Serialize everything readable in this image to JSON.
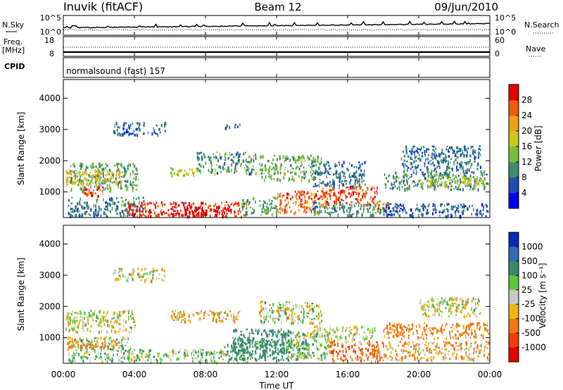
{
  "header": {
    "station": "Inuvik (fitACF)",
    "beam": "Beam 12",
    "date": "09/Jun/2010"
  },
  "top_panels": {
    "nsky_label": "N.Sky",
    "nsky_ticks": [
      "10^5",
      "10^0"
    ],
    "nsearch_label": "N.Search",
    "freq_label_line1": "Freq.",
    "freq_label_line2": "[MHz]",
    "freq_ticks": [
      "18",
      "8"
    ],
    "nave_ticks": [
      "60",
      "0"
    ],
    "nave_label": "Nave",
    "cpid_label": "CPID",
    "cpid_value": "normalsound (fast) 157"
  },
  "axes": {
    "xlabel": "Time UT",
    "x_ticks": [
      "00:00",
      "04:00",
      "08:00",
      "12:00",
      "16:00",
      "20:00",
      "00:00"
    ],
    "ylabel": "Slant Range [km]",
    "y_ticks": [
      1000,
      2000,
      3000,
      4000
    ]
  },
  "power_scale": {
    "label": "Power [dB]",
    "ticks": [
      4,
      8,
      12,
      16,
      20,
      24,
      28
    ]
  },
  "velocity_scale": {
    "label": "Velocity [m s⁻¹]",
    "ticks": [
      1000,
      500,
      100,
      25,
      -25,
      -100,
      -500,
      -1000
    ]
  },
  "colors": {
    "power": [
      "#0000ee",
      "#1c4fb4",
      "#3d8a6e",
      "#78be3a",
      "#c8c81e",
      "#f0a014",
      "#f05a0a",
      "#e60000"
    ],
    "velocity": [
      "#0a2ab4",
      "#2f6cb4",
      "#3a8a6a",
      "#5ac83a",
      "#c8c8c8",
      "#f0b414",
      "#f07814",
      "#f03c0a",
      "#e60000"
    ]
  },
  "chart_data": {
    "type": "heatmap",
    "xlabel": "Time UT",
    "ylabel": "Slant Range [km]",
    "xlim": [
      "00:00",
      "24:00"
    ],
    "ylim": [
      180,
      4600
    ],
    "panels": [
      {
        "name": "Power",
        "unit": "dB",
        "colorbar_range": [
          0,
          30
        ],
        "regions": [
          {
            "t0": 0.3,
            "t1": 4.2,
            "r0": 1050,
            "r1": 1950,
            "value": 11
          },
          {
            "t0": 0.1,
            "t1": 3.3,
            "r0": 1250,
            "r1": 1700,
            "value": 20
          },
          {
            "t0": 1.0,
            "t1": 2.2,
            "r0": 900,
            "r1": 1200,
            "value": 27
          },
          {
            "t0": 0.2,
            "t1": 4.5,
            "r0": 250,
            "r1": 850,
            "value": 9
          },
          {
            "t0": 3.5,
            "t1": 10.3,
            "r0": 240,
            "r1": 700,
            "value": 29
          },
          {
            "t0": 6.0,
            "t1": 9.5,
            "r0": 260,
            "r1": 560,
            "value": 31
          },
          {
            "t0": 10.0,
            "t1": 12.0,
            "r0": 280,
            "r1": 850,
            "value": 12
          },
          {
            "t0": 12.0,
            "t1": 14.8,
            "r0": 350,
            "r1": 1050,
            "value": 26
          },
          {
            "t0": 14.5,
            "t1": 17.8,
            "r0": 600,
            "r1": 1200,
            "value": 27
          },
          {
            "t0": 17.6,
            "t1": 18.4,
            "r0": 450,
            "r1": 750,
            "value": 26
          },
          {
            "t0": 14.0,
            "t1": 18.0,
            "r0": 280,
            "r1": 700,
            "value": 10
          },
          {
            "t0": 18.0,
            "t1": 23.9,
            "r0": 250,
            "r1": 650,
            "value": 7
          },
          {
            "t0": 18.0,
            "t1": 23.9,
            "r0": 1100,
            "r1": 1700,
            "value": 10
          },
          {
            "t0": 20.0,
            "t1": 23.8,
            "r0": 1200,
            "r1": 1500,
            "value": 16
          },
          {
            "t0": 11.0,
            "t1": 14.5,
            "r0": 1400,
            "r1": 2200,
            "value": 13
          },
          {
            "t0": 14.0,
            "t1": 17.0,
            "r0": 1200,
            "r1": 2000,
            "value": 8
          },
          {
            "t0": 6.0,
            "t1": 7.5,
            "r0": 1500,
            "r1": 1800,
            "value": 18
          },
          {
            "t0": 7.5,
            "t1": 10.8,
            "r0": 1600,
            "r1": 2300,
            "value": 10
          },
          {
            "t0": 2.8,
            "t1": 5.7,
            "r0": 2850,
            "r1": 3250,
            "value": 7
          },
          {
            "t0": 19.0,
            "t1": 23.5,
            "r0": 1700,
            "r1": 2500,
            "value": 8
          },
          {
            "t0": 9.0,
            "t1": 10.0,
            "r0": 3050,
            "r1": 3200,
            "value": 7
          }
        ]
      },
      {
        "name": "Velocity",
        "unit": "m s⁻¹",
        "colorbar_range": [
          -1000,
          1000
        ],
        "regions": [
          {
            "t0": 0.1,
            "t1": 4.0,
            "r0": 1200,
            "r1": 1900,
            "value": 0
          },
          {
            "t0": 0.2,
            "t1": 3.8,
            "r0": 250,
            "r1": 1050,
            "value": 60
          },
          {
            "t0": 0.2,
            "t1": 3.0,
            "r0": 700,
            "r1": 1000,
            "value": -150
          },
          {
            "t0": 3.5,
            "t1": 10.5,
            "r0": 250,
            "r1": 650,
            "value": 70
          },
          {
            "t0": 9.0,
            "t1": 13.8,
            "r0": 300,
            "r1": 950,
            "value": 200
          },
          {
            "t0": 9.5,
            "t1": 12.8,
            "r0": 500,
            "r1": 1300,
            "value": 250
          },
          {
            "t0": 12.5,
            "t1": 15.0,
            "r0": 350,
            "r1": 1200,
            "value": 40
          },
          {
            "t0": 15.0,
            "t1": 18.0,
            "r0": 250,
            "r1": 900,
            "value": -450
          },
          {
            "t0": 14.0,
            "t1": 17.5,
            "r0": 900,
            "r1": 1400,
            "value": 0
          },
          {
            "t0": 18.0,
            "t1": 23.9,
            "r0": 300,
            "r1": 900,
            "value": -80
          },
          {
            "t0": 18.0,
            "t1": 23.9,
            "r0": 1000,
            "r1": 1500,
            "value": -200
          },
          {
            "t0": 20.0,
            "t1": 23.5,
            "r0": 1700,
            "r1": 2300,
            "value": 0
          },
          {
            "t0": 11.0,
            "t1": 14.5,
            "r0": 1500,
            "r1": 2200,
            "value": 5
          },
          {
            "t0": 2.8,
            "t1": 5.7,
            "r0": 2850,
            "r1": 3250,
            "value": 0
          },
          {
            "t0": 6.0,
            "t1": 10.0,
            "r0": 1550,
            "r1": 1900,
            "value": -60
          }
        ]
      }
    ]
  }
}
